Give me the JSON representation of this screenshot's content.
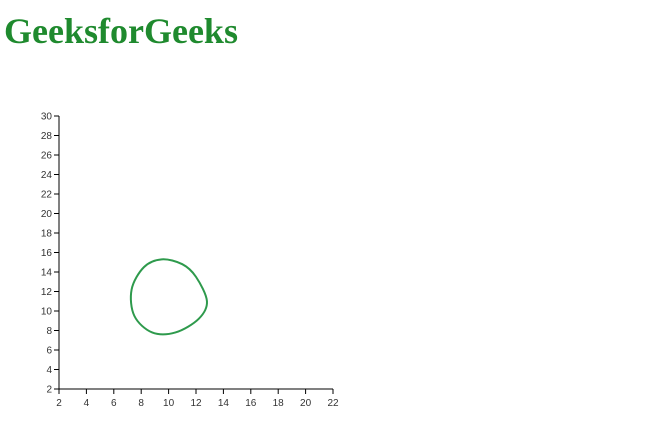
{
  "page": {
    "title": "GeeksforGeeks"
  },
  "colors": {
    "brand": "#1f8a2e",
    "curve": "#2e9a4c",
    "axis": "#000000",
    "tick_text": "#333333"
  },
  "chart_data": {
    "type": "line",
    "title": "",
    "xlabel": "",
    "ylabel": "",
    "xlim": [
      2,
      22
    ],
    "ylim": [
      2,
      30
    ],
    "x_ticks": [
      2,
      4,
      6,
      8,
      10,
      12,
      14,
      16,
      18,
      20,
      22
    ],
    "y_ticks": [
      2,
      4,
      6,
      8,
      10,
      12,
      14,
      16,
      18,
      20,
      22,
      24,
      26,
      28,
      30
    ],
    "grid": false,
    "curve": "closed",
    "series": [
      {
        "x": [
          12.0,
          11.0,
          9.5,
          8.2,
          7.3,
          7.5,
          8.8,
          10.5,
          12.2,
          12.8
        ],
        "y": [
          13.5,
          14.8,
          15.3,
          14.5,
          12.2,
          9.5,
          7.8,
          7.8,
          9.2,
          11.0
        ]
      }
    ]
  }
}
